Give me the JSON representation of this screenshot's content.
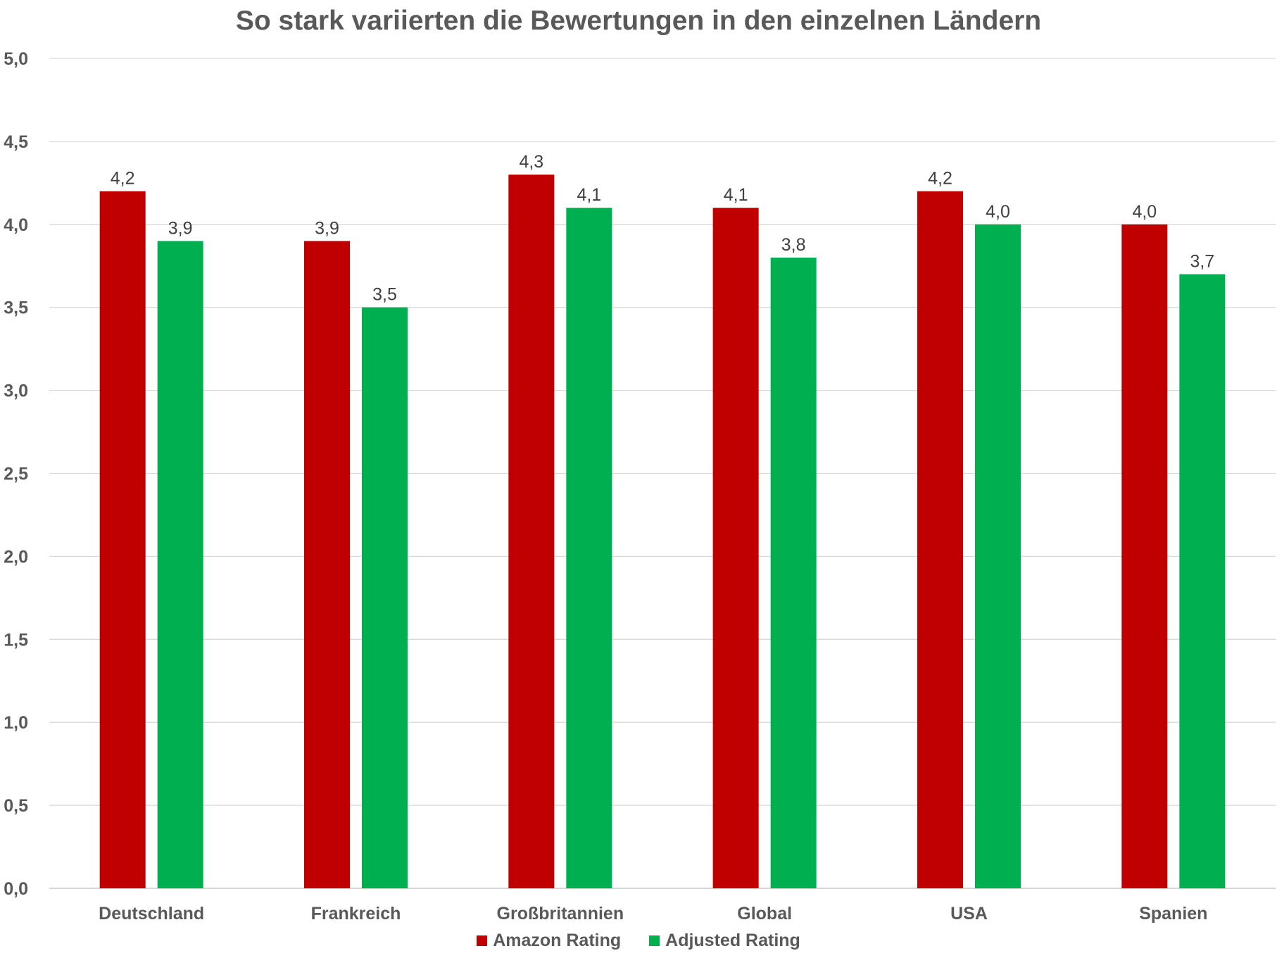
{
  "chart_data": {
    "type": "bar",
    "title": "So stark variierten die Bewertungen in den einzelnen Ländern",
    "categories": [
      "Deutschland",
      "Frankreich",
      "Großbritannien",
      "Global",
      "USA",
      "Spanien"
    ],
    "series": [
      {
        "name": "Amazon Rating",
        "color": "#C00000",
        "values": [
          4.2,
          3.9,
          4.3,
          4.1,
          4.2,
          4.0
        ]
      },
      {
        "name": "Adjusted Rating",
        "color": "#00B050",
        "values": [
          3.9,
          3.5,
          4.1,
          3.8,
          4.0,
          3.7
        ]
      }
    ],
    "ylim": [
      0,
      5
    ],
    "yticks": [
      "0,0",
      "0,5",
      "1,0",
      "1,5",
      "2,0",
      "2,5",
      "3,0",
      "3,5",
      "4,0",
      "4,5",
      "5,0"
    ],
    "data_labels": [
      [
        "4,2",
        "3,9",
        "4,3",
        "4,1",
        "4,2",
        "4,0"
      ],
      [
        "3,9",
        "3,5",
        "4,1",
        "3,8",
        "4,0",
        "3,7"
      ]
    ],
    "grid": true,
    "legend_position": "bottom"
  }
}
